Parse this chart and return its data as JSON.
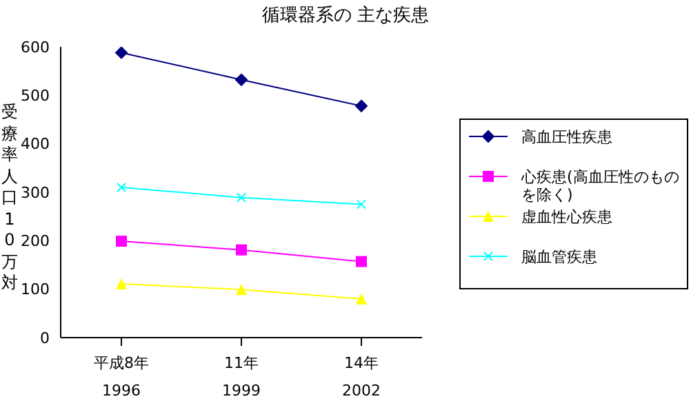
{
  "chart_data": {
    "type": "line",
    "title": "循環器系の 主な疾患",
    "ylabel": "受療率人口10万対",
    "categories": [
      "平成8年\n1996",
      "11年\n1999",
      "14年\n2002"
    ],
    "series": [
      {
        "name": "高血圧性疾患",
        "color": "#000080",
        "marker": "diamond",
        "values": [
          588,
          532,
          478
        ]
      },
      {
        "name": "心疾患(高血圧性のものを除く)",
        "color": "#ff00ff",
        "marker": "square",
        "values": [
          199,
          181,
          157
        ]
      },
      {
        "name": "虚血性心疾患",
        "color": "#ffff00",
        "marker": "triangle",
        "values": [
          111,
          99,
          80
        ]
      },
      {
        "name": "脳血管疾患",
        "color": "#00ffff",
        "marker": "cross",
        "values": [
          310,
          289,
          275
        ]
      }
    ],
    "ylim": [
      0,
      600
    ],
    "yticks": [
      0,
      100,
      200,
      300,
      400,
      500,
      600
    ],
    "grid": false,
    "legend": "right"
  }
}
